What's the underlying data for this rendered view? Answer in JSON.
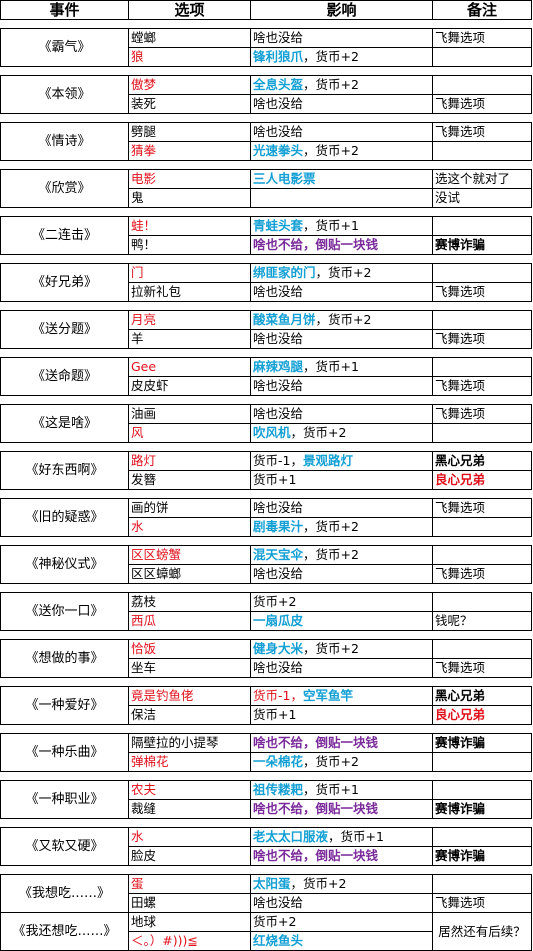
{
  "headers": [
    "事件",
    "选项",
    "影响",
    "备注"
  ],
  "events": [
    {
      "name": "《霸气》",
      "rows": [
        {
          "option": {
            "text": "螳螂",
            "style": "blk"
          },
          "effect": [
            {
              "text": "啥也没给",
              "style": "blk"
            }
          ],
          "note": {
            "text": "飞舞选项",
            "style": "blk"
          }
        },
        {
          "option": {
            "text": "狼",
            "style": "red"
          },
          "effect": [
            {
              "text": "锋利狼爪",
              "style": "cy"
            },
            {
              "text": "，货币+2",
              "style": "blk"
            }
          ],
          "note": {
            "text": "",
            "style": "blk"
          }
        }
      ]
    },
    {
      "name": "《本领》",
      "rows": [
        {
          "option": {
            "text": "傲梦",
            "style": "red"
          },
          "effect": [
            {
              "text": "全息头盔",
              "style": "cy"
            },
            {
              "text": "，货币+2",
              "style": "blk"
            }
          ],
          "note": {
            "text": "",
            "style": "blk"
          }
        },
        {
          "option": {
            "text": "装死",
            "style": "blk"
          },
          "effect": [
            {
              "text": "啥也没给",
              "style": "blk"
            }
          ],
          "note": {
            "text": "飞舞选项",
            "style": "blk"
          }
        }
      ]
    },
    {
      "name": "《情诗》",
      "rows": [
        {
          "option": {
            "text": "劈腿",
            "style": "blk"
          },
          "effect": [
            {
              "text": "啥也没给",
              "style": "blk"
            }
          ],
          "note": {
            "text": "飞舞选项",
            "style": "blk"
          }
        },
        {
          "option": {
            "text": "猜拳",
            "style": "red"
          },
          "effect": [
            {
              "text": "光速拳头",
              "style": "cy"
            },
            {
              "text": "，货币+2",
              "style": "blk"
            }
          ],
          "note": {
            "text": "",
            "style": "blk"
          }
        }
      ]
    },
    {
      "name": "《欣赏》",
      "rows": [
        {
          "option": {
            "text": "电影",
            "style": "red"
          },
          "effect": [
            {
              "text": "三人电影票",
              "style": "cy"
            }
          ],
          "note": {
            "text": "选这个就对了",
            "style": "blk"
          }
        },
        {
          "option": {
            "text": "鬼",
            "style": "blk"
          },
          "effect": [
            {
              "text": "",
              "style": "blk"
            }
          ],
          "note": {
            "text": "没试",
            "style": "blk"
          }
        }
      ]
    },
    {
      "name": "《二连击》",
      "rows": [
        {
          "option": {
            "text": "蛙！",
            "style": "red"
          },
          "effect": [
            {
              "text": "青蛙头套",
              "style": "cy"
            },
            {
              "text": "，货币+1",
              "style": "blk"
            }
          ],
          "note": {
            "text": "",
            "style": "blk"
          }
        },
        {
          "option": {
            "text": "鸭！",
            "style": "blk"
          },
          "effect": [
            {
              "text": "啥也不给，倒贴一块钱",
              "style": "pu"
            }
          ],
          "note": {
            "text": "赛博诈骗",
            "style": "nb"
          }
        }
      ]
    },
    {
      "name": "《好兄弟》",
      "rows": [
        {
          "option": {
            "text": "门",
            "style": "red"
          },
          "effect": [
            {
              "text": "绑匪家的门",
              "style": "cy"
            },
            {
              "text": "，货币+2",
              "style": "blk"
            }
          ],
          "note": {
            "text": "",
            "style": "blk"
          }
        },
        {
          "option": {
            "text": "拉新礼包",
            "style": "blk"
          },
          "effect": [
            {
              "text": "啥也没给",
              "style": "blk"
            }
          ],
          "note": {
            "text": "飞舞选项",
            "style": "blk"
          }
        }
      ]
    },
    {
      "name": "《送分题》",
      "rows": [
        {
          "option": {
            "text": "月亮",
            "style": "red"
          },
          "effect": [
            {
              "text": "酸菜鱼月饼",
              "style": "cy"
            },
            {
              "text": "，货币+2",
              "style": "blk"
            }
          ],
          "note": {
            "text": "",
            "style": "blk"
          }
        },
        {
          "option": {
            "text": "羊",
            "style": "blk"
          },
          "effect": [
            {
              "text": "啥也没给",
              "style": "blk"
            }
          ],
          "note": {
            "text": "飞舞选项",
            "style": "blk"
          }
        }
      ]
    },
    {
      "name": "《送命题》",
      "rows": [
        {
          "option": {
            "text": "Gee",
            "style": "red"
          },
          "effect": [
            {
              "text": "麻辣鸡腿",
              "style": "cy"
            },
            {
              "text": "，货币+1",
              "style": "blk"
            }
          ],
          "note": {
            "text": "",
            "style": "blk"
          }
        },
        {
          "option": {
            "text": "皮皮虾",
            "style": "blk"
          },
          "effect": [
            {
              "text": "啥也没给",
              "style": "blk"
            }
          ],
          "note": {
            "text": "飞舞选项",
            "style": "blk"
          }
        }
      ]
    },
    {
      "name": "《这是啥》",
      "rows": [
        {
          "option": {
            "text": "油画",
            "style": "blk"
          },
          "effect": [
            {
              "text": "啥也没给",
              "style": "blk"
            }
          ],
          "note": {
            "text": "飞舞选项",
            "style": "blk"
          }
        },
        {
          "option": {
            "text": "风",
            "style": "red"
          },
          "effect": [
            {
              "text": "吹风机",
              "style": "cy"
            },
            {
              "text": "，货币+2",
              "style": "blk"
            }
          ],
          "note": {
            "text": "",
            "style": "blk"
          }
        }
      ]
    },
    {
      "name": "《好东西啊》",
      "rows": [
        {
          "option": {
            "text": "路灯",
            "style": "red"
          },
          "effect": [
            {
              "text": "货币-1，",
              "style": "blk"
            },
            {
              "text": "景观路灯",
              "style": "cy"
            }
          ],
          "note": {
            "text": "黑心兄弟",
            "style": "nb"
          }
        },
        {
          "option": {
            "text": "发簪",
            "style": "blk"
          },
          "effect": [
            {
              "text": "货币+1",
              "style": "blk"
            }
          ],
          "note": {
            "text": "良心兄弟",
            "style": "rb"
          }
        }
      ]
    },
    {
      "name": "《旧的疑惑》",
      "rows": [
        {
          "option": {
            "text": "画的饼",
            "style": "blk"
          },
          "effect": [
            {
              "text": "啥也没给",
              "style": "blk"
            }
          ],
          "note": {
            "text": "飞舞选项",
            "style": "blk"
          }
        },
        {
          "option": {
            "text": "水",
            "style": "red"
          },
          "effect": [
            {
              "text": "剧毒果汁",
              "style": "cy"
            },
            {
              "text": "，货币+2",
              "style": "blk"
            }
          ],
          "note": {
            "text": "",
            "style": "blk"
          }
        }
      ]
    },
    {
      "name": "《神秘仪式》",
      "rows": [
        {
          "option": {
            "text": "区区螃蟹",
            "style": "red"
          },
          "effect": [
            {
              "text": "混天宝伞",
              "style": "cy"
            },
            {
              "text": "，货币+2",
              "style": "blk"
            }
          ],
          "note": {
            "text": "",
            "style": "blk"
          }
        },
        {
          "option": {
            "text": "区区蟑螂",
            "style": "blk"
          },
          "effect": [
            {
              "text": "啥也没给",
              "style": "blk"
            }
          ],
          "note": {
            "text": "飞舞选项",
            "style": "blk"
          }
        }
      ]
    },
    {
      "name": "《送你一口》",
      "rows": [
        {
          "option": {
            "text": "荔枝",
            "style": "blk"
          },
          "effect": [
            {
              "text": "货币+2",
              "style": "blk"
            }
          ],
          "note": {
            "text": "",
            "style": "blk"
          }
        },
        {
          "option": {
            "text": "西瓜",
            "style": "red"
          },
          "effect": [
            {
              "text": "一扇瓜皮",
              "style": "cy"
            }
          ],
          "note": {
            "text": "钱呢？",
            "style": "blk"
          }
        }
      ]
    },
    {
      "name": "《想做的事》",
      "rows": [
        {
          "option": {
            "text": "恰饭",
            "style": "red"
          },
          "effect": [
            {
              "text": "健身大米",
              "style": "cy"
            },
            {
              "text": "，货币+2",
              "style": "blk"
            }
          ],
          "note": {
            "text": "",
            "style": "blk"
          }
        },
        {
          "option": {
            "text": "坐车",
            "style": "blk"
          },
          "effect": [
            {
              "text": "啥也没给",
              "style": "blk"
            }
          ],
          "note": {
            "text": "飞舞选项",
            "style": "blk"
          }
        }
      ]
    },
    {
      "name": "《一种爱好》",
      "rows": [
        {
          "option": {
            "text": "竟是钓鱼佬",
            "style": "red"
          },
          "effect": [
            {
              "text": "货币-1，",
              "style": "red"
            },
            {
              "text": "空军鱼竿",
              "style": "cy"
            }
          ],
          "note": {
            "text": "黑心兄弟",
            "style": "nb"
          }
        },
        {
          "option": {
            "text": "保洁",
            "style": "blk"
          },
          "effect": [
            {
              "text": "货币+1",
              "style": "blk"
            }
          ],
          "note": {
            "text": "良心兄弟",
            "style": "rb"
          }
        }
      ]
    },
    {
      "name": "《一种乐曲》",
      "rows": [
        {
          "option": {
            "text": "隔壁拉的小提琴",
            "style": "blk"
          },
          "effect": [
            {
              "text": "啥也不给，倒贴一块钱",
              "style": "pu"
            }
          ],
          "note": {
            "text": "赛博诈骗",
            "style": "nb"
          }
        },
        {
          "option": {
            "text": "弹棉花",
            "style": "red"
          },
          "effect": [
            {
              "text": "一朵棉花",
              "style": "cy"
            },
            {
              "text": "，货币+2",
              "style": "blk"
            }
          ],
          "note": {
            "text": "",
            "style": "blk"
          }
        }
      ]
    },
    {
      "name": "《一种职业》",
      "rows": [
        {
          "option": {
            "text": "农夫",
            "style": "red"
          },
          "effect": [
            {
              "text": "祖传耧耙",
              "style": "cy"
            },
            {
              "text": "，货币+1",
              "style": "blk"
            }
          ],
          "note": {
            "text": "",
            "style": "blk"
          }
        },
        {
          "option": {
            "text": "裁缝",
            "style": "blk"
          },
          "effect": [
            {
              "text": "啥也不给，倒贴一块钱",
              "style": "pu"
            }
          ],
          "note": {
            "text": "赛博诈骗",
            "style": "nb"
          }
        }
      ]
    },
    {
      "name": "《又软又硬》",
      "rows": [
        {
          "option": {
            "text": "水",
            "style": "red"
          },
          "effect": [
            {
              "text": "老太太口服液",
              "style": "cy"
            },
            {
              "text": "，货币+1",
              "style": "blk"
            }
          ],
          "note": {
            "text": "",
            "style": "blk"
          }
        },
        {
          "option": {
            "text": "脸皮",
            "style": "blk"
          },
          "effect": [
            {
              "text": "啥也不给，倒贴一块钱",
              "style": "pu"
            }
          ],
          "note": {
            "text": "赛博诈骗",
            "style": "nb"
          }
        }
      ]
    }
  ],
  "last_block": {
    "event_a": "《我想吃……》",
    "event_b": "《我还想吃……》",
    "rows": [
      {
        "option": {
          "text": "蛋",
          "style": "red"
        },
        "effect": [
          {
            "text": "太阳蛋",
            "style": "cy"
          },
          {
            "text": "，货币+2",
            "style": "blk"
          }
        ]
      },
      {
        "option": {
          "text": "田螺",
          "style": "blk"
        },
        "effect": [
          {
            "text": "啥也没给",
            "style": "blk"
          }
        ]
      },
      {
        "option": {
          "text": "地球",
          "style": "blk"
        },
        "effect": [
          {
            "text": "货币+2",
            "style": "blk"
          }
        ]
      },
      {
        "option": {
          "text": "＜。）#)))≦",
          "style": "red"
        },
        "effect": [
          {
            "text": "红烧鱼头",
            "style": "cy"
          }
        ]
      }
    ],
    "note_a": "飞舞选项",
    "note_b": "居然还有后续？"
  }
}
